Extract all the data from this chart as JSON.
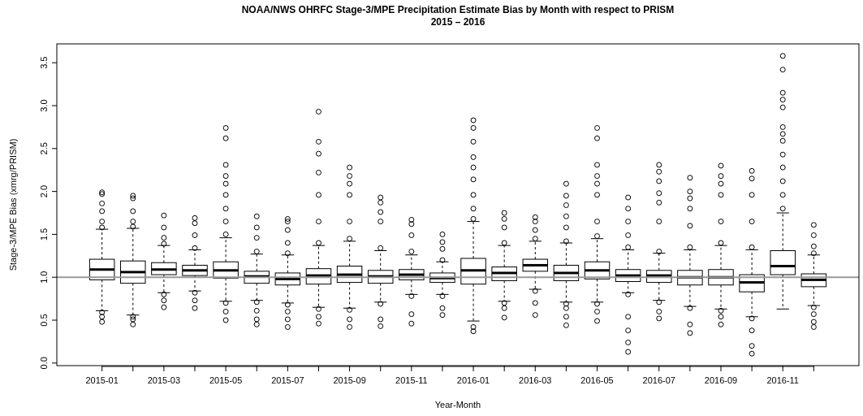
{
  "chart_data": {
    "type": "box",
    "title": "NOAA/NWS OHRFC Stage-3/MPE Precipitation Estimate Bias by Month with respect to PRISM",
    "subtitle": "2015 – 2016",
    "xlabel": "Year-Month",
    "ylabel": "Stage-3/MPE Bias (xmrg/PRISM)",
    "categories": [
      "2015-01",
      null,
      "2015-03",
      null,
      "2015-05",
      null,
      "2015-07",
      null,
      "2015-09",
      null,
      "2015-11",
      null,
      "2016-01",
      null,
      "2016-03",
      null,
      "2016-05",
      null,
      "2016-07",
      null,
      "2016-09",
      null,
      "2016-11",
      null
    ],
    "ylim": [
      -0.03,
      3.72
    ],
    "yticks": [
      {
        "value": 0,
        "label": "0.0"
      },
      0.5,
      {
        "value": 1,
        "label": "1.0"
      },
      1.5,
      {
        "value": 2,
        "label": "2.0"
      },
      2.5,
      {
        "value": 3,
        "label": "3.0"
      },
      3.5
    ],
    "grid": false,
    "ref_lines": [
      {
        "axis": "y",
        "value": 1,
        "color": "#999999"
      }
    ],
    "boxes": [
      {
        "low": 0.61,
        "q1": 0.97,
        "median": 1.09,
        "q3": 1.21,
        "high": 1.56,
        "outliers": [
          1.99,
          1.97,
          1.86,
          1.77,
          1.65,
          1.58,
          0.59,
          0.54,
          0.48
        ]
      },
      {
        "low": 0.56,
        "q1": 0.93,
        "median": 1.06,
        "q3": 1.19,
        "high": 1.57,
        "outliers": [
          1.95,
          1.92,
          1.77,
          1.65,
          1.59,
          0.54,
          0.51,
          0.45
        ]
      },
      {
        "low": 0.82,
        "q1": 1.03,
        "median": 1.09,
        "q3": 1.17,
        "high": 1.37,
        "outliers": [
          1.72,
          1.58,
          1.46,
          1.39,
          0.8,
          0.73,
          0.65
        ]
      },
      {
        "low": 0.84,
        "q1": 1.02,
        "median": 1.08,
        "q3": 1.14,
        "high": 1.32,
        "outliers": [
          1.69,
          1.63,
          1.49,
          1.34,
          0.82,
          0.73,
          0.64
        ]
      },
      {
        "low": 0.72,
        "q1": 0.99,
        "median": 1.08,
        "q3": 1.18,
        "high": 1.46,
        "outliers": [
          2.74,
          2.62,
          2.31,
          2.18,
          2.09,
          1.96,
          1.8,
          1.65,
          1.5,
          0.7,
          0.6,
          0.5
        ]
      },
      {
        "low": 0.73,
        "q1": 0.93,
        "median": 1.01,
        "q3": 1.07,
        "high": 1.27,
        "outliers": [
          1.71,
          1.58,
          1.46,
          1.3,
          0.71,
          0.61,
          0.51,
          0.45
        ]
      },
      {
        "low": 0.7,
        "q1": 0.91,
        "median": 0.98,
        "q3": 1.05,
        "high": 1.26,
        "outliers": [
          1.68,
          1.65,
          1.55,
          1.4,
          1.28,
          0.68,
          0.6,
          0.51,
          0.42
        ]
      },
      {
        "low": 0.65,
        "q1": 0.92,
        "median": 1.02,
        "q3": 1.1,
        "high": 1.37,
        "outliers": [
          2.93,
          2.58,
          2.44,
          2.22,
          1.96,
          1.65,
          1.4,
          0.63,
          0.54,
          0.46
        ]
      },
      {
        "low": 0.64,
        "q1": 0.94,
        "median": 1.03,
        "q3": 1.13,
        "high": 1.42,
        "outliers": [
          2.28,
          2.18,
          2.09,
          1.96,
          1.65,
          1.45,
          0.62,
          0.51,
          0.42
        ]
      },
      {
        "low": 0.71,
        "q1": 0.93,
        "median": 1.01,
        "q3": 1.08,
        "high": 1.31,
        "outliers": [
          1.93,
          1.87,
          1.76,
          1.65,
          1.34,
          0.69,
          0.51,
          0.43
        ]
      },
      {
        "low": 0.8,
        "q1": 0.97,
        "median": 1.03,
        "q3": 1.09,
        "high": 1.26,
        "outliers": [
          1.67,
          1.62,
          1.49,
          1.3,
          0.78,
          0.57,
          0.46
        ]
      },
      {
        "low": 0.8,
        "q1": 0.94,
        "median": 0.99,
        "q3": 1.05,
        "high": 1.18,
        "outliers": [
          1.5,
          1.41,
          1.33,
          1.2,
          0.78,
          0.64,
          0.56
        ]
      },
      {
        "low": 0.49,
        "q1": 0.92,
        "median": 1.08,
        "q3": 1.22,
        "high": 1.65,
        "outliers": [
          2.83,
          2.74,
          2.58,
          2.4,
          2.28,
          2.14,
          1.96,
          1.8,
          1.68,
          0.42,
          0.37
        ]
      },
      {
        "low": 0.72,
        "q1": 0.96,
        "median": 1.05,
        "q3": 1.12,
        "high": 1.37,
        "outliers": [
          1.75,
          1.68,
          1.58,
          1.4,
          0.7,
          0.64,
          0.53
        ]
      },
      {
        "low": 0.86,
        "q1": 1.07,
        "median": 1.14,
        "q3": 1.21,
        "high": 1.42,
        "outliers": [
          1.7,
          1.65,
          1.55,
          1.45,
          0.84,
          0.7,
          0.56
        ]
      },
      {
        "low": 0.71,
        "q1": 0.96,
        "median": 1.05,
        "q3": 1.14,
        "high": 1.4,
        "outliers": [
          2.09,
          1.95,
          1.84,
          1.71,
          1.58,
          1.42,
          0.69,
          0.64,
          0.54,
          0.44
        ]
      },
      {
        "low": 0.71,
        "q1": 0.98,
        "median": 1.08,
        "q3": 1.18,
        "high": 1.45,
        "outliers": [
          2.74,
          2.62,
          2.31,
          2.18,
          2.09,
          1.96,
          1.65,
          1.48,
          0.69,
          0.6,
          0.49
        ]
      },
      {
        "low": 0.82,
        "q1": 0.95,
        "median": 1.02,
        "q3": 1.09,
        "high": 1.32,
        "outliers": [
          1.93,
          1.8,
          1.65,
          1.49,
          1.35,
          0.8,
          0.54,
          0.38,
          0.24,
          0.13
        ]
      },
      {
        "low": 0.73,
        "q1": 0.94,
        "median": 1.02,
        "q3": 1.08,
        "high": 1.28,
        "outliers": [
          2.31,
          2.23,
          2.12,
          1.98,
          1.87,
          1.65,
          1.3,
          0.71,
          0.6,
          0.52
        ]
      },
      {
        "low": 0.66,
        "q1": 0.91,
        "median": 1.0,
        "q3": 1.08,
        "high": 1.32,
        "outliers": [
          2.16,
          2.0,
          1.92,
          1.8,
          1.6,
          1.35,
          0.64,
          0.45,
          0.35
        ]
      },
      {
        "low": 0.63,
        "q1": 0.91,
        "median": 1.0,
        "q3": 1.09,
        "high": 1.37,
        "outliers": [
          2.3,
          2.18,
          2.09,
          1.96,
          1.65,
          1.4,
          0.61,
          0.54,
          0.45
        ]
      },
      {
        "low": 0.54,
        "q1": 0.83,
        "median": 0.94,
        "q3": 1.03,
        "high": 1.32,
        "outliers": [
          2.24,
          2.15,
          1.96,
          1.65,
          1.35,
          0.52,
          0.38,
          0.2,
          0.11
        ]
      },
      {
        "low": 0.63,
        "q1": 1.03,
        "median": 1.13,
        "q3": 1.31,
        "high": 1.75,
        "outliers": [
          3.58,
          3.42,
          3.15,
          3.07,
          2.98,
          2.75,
          2.67,
          2.59,
          2.43,
          2.28,
          2.12,
          1.96,
          1.8
        ]
      },
      {
        "low": 0.67,
        "q1": 0.89,
        "median": 0.97,
        "q3": 1.04,
        "high": 1.26,
        "outliers": [
          1.61,
          1.49,
          1.36,
          1.28,
          0.65,
          0.57,
          0.48,
          0.42
        ]
      }
    ]
  }
}
